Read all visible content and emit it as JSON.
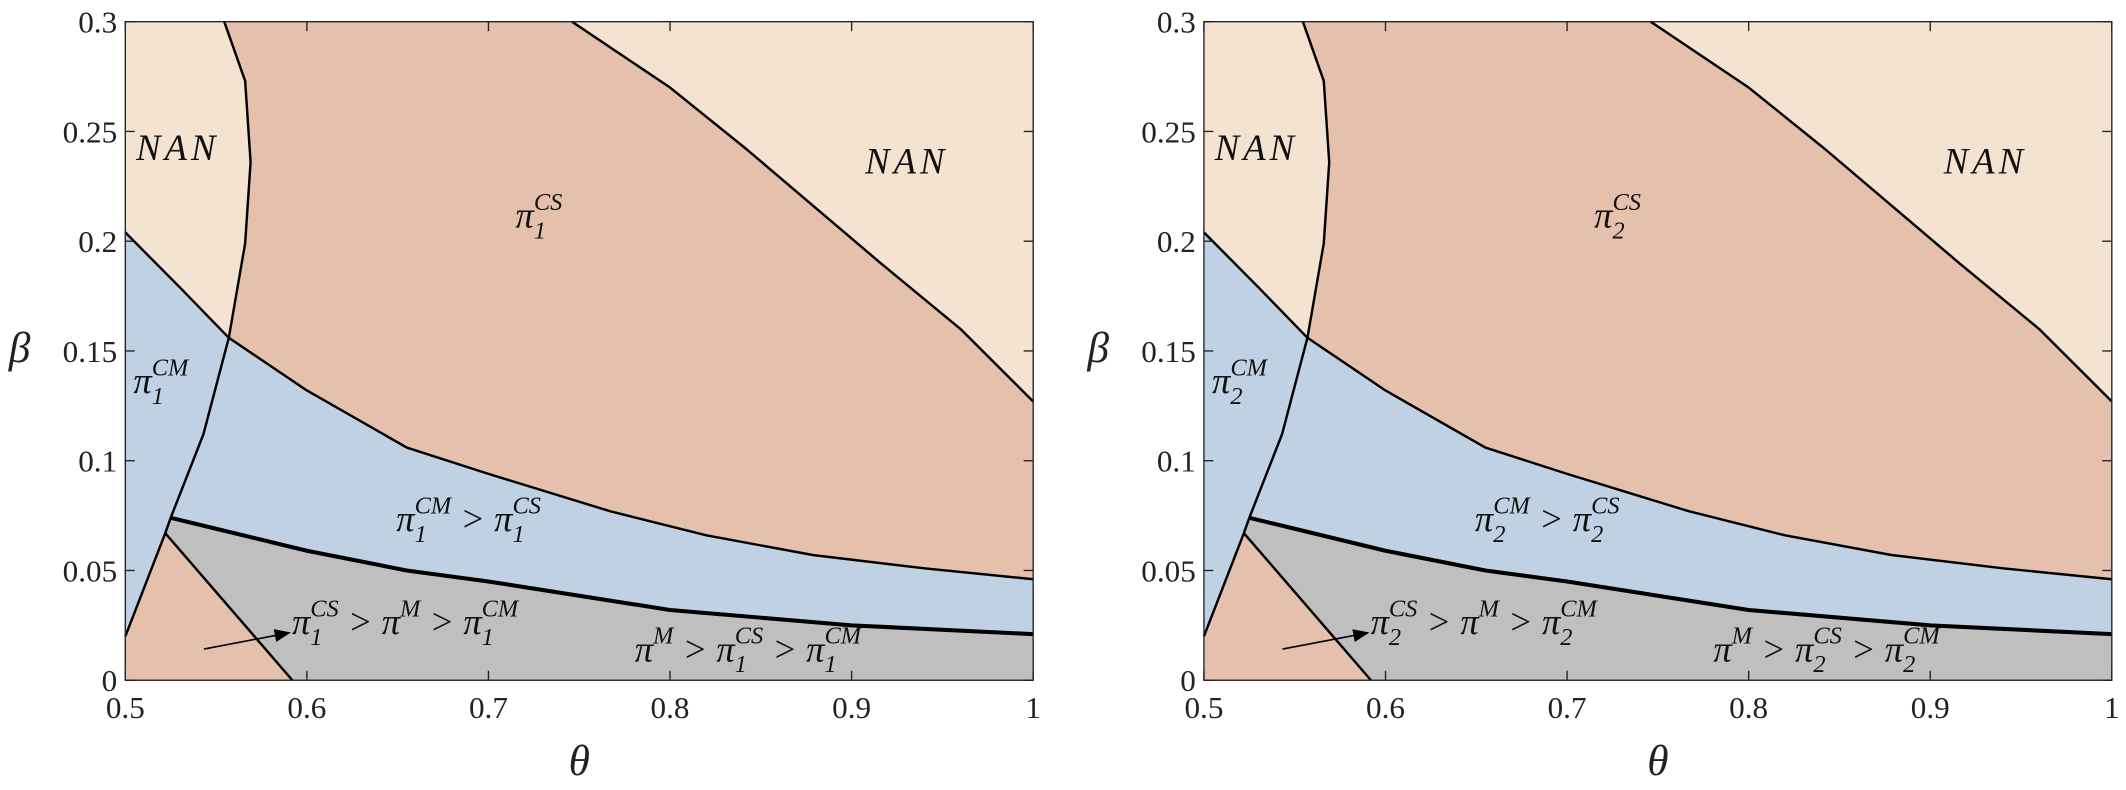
{
  "chart_data": [
    {
      "type": "region",
      "xlabel": "θ",
      "ylabel": "β",
      "xlim": [
        0.5,
        1
      ],
      "ylim": [
        0,
        0.3
      ],
      "xticks": [
        0.5,
        0.6,
        0.7,
        0.8,
        0.9,
        1
      ],
      "yticks": [
        0,
        0.05,
        0.1,
        0.15,
        0.2,
        0.25,
        0.3
      ],
      "region_colors": {
        "nan": "#f5e3d1",
        "cs": "#e4c0ad",
        "cm": "#c0d1e3",
        "m": "#bfbfbf"
      },
      "boundaries": [
        {
          "x": [
            0.5545,
            0.566,
            0.569,
            0.566,
            0.557,
            0.543,
            0.525,
            0.522,
            0.5
          ],
          "y": [
            0.3,
            0.273,
            0.236,
            0.199,
            0.156,
            0.112,
            0.074,
            0.067,
            0.02
          ]
        },
        {
          "x": [
            0.746,
            0.8,
            0.842,
            0.916,
            0.96,
            1
          ],
          "y": [
            0.3,
            0.27,
            0.242,
            0.19,
            0.16,
            0.127
          ]
        },
        {
          "x": [
            0.5,
            0.53,
            0.557,
            0.6,
            0.655,
            0.7,
            0.767,
            0.82,
            0.879,
            0.94,
            1
          ],
          "y": [
            0.204,
            0.179,
            0.156,
            0.132,
            0.106,
            0.094,
            0.077,
            0.066,
            0.057,
            0.051,
            0.046
          ]
        },
        {
          "x": [
            0.525,
            0.55,
            0.6,
            0.655,
            0.7,
            0.8,
            0.9,
            1
          ],
          "y": [
            0.074,
            0.069,
            0.059,
            0.05,
            0.045,
            0.032,
            0.025,
            0.021
          ]
        },
        {
          "x": [
            0.522,
            0.592
          ],
          "y": [
            0.067,
            0
          ]
        }
      ],
      "annotations": [
        [
          {
            "t": "NAN"
          }
        ],
        [
          {
            "t": "NAN"
          }
        ],
        [
          {
            "t": "π"
          },
          {
            "sub": "1"
          },
          {
            "sup": "CS"
          }
        ],
        [
          {
            "t": "π"
          },
          {
            "sub": "1"
          },
          {
            "sup": "CM"
          }
        ],
        [
          {
            "t": "π"
          },
          {
            "sub": "1"
          },
          {
            "sup": "CM"
          },
          {
            "t": " > π"
          },
          {
            "sub": "1"
          },
          {
            "sup": "CS"
          }
        ],
        [
          {
            "t": "π"
          },
          {
            "sub": "1"
          },
          {
            "sup": "CS"
          },
          {
            "t": " > π"
          },
          {
            "sup": "M"
          },
          {
            "t": " > π"
          },
          {
            "sub": "1"
          },
          {
            "sup": "CM"
          }
        ],
        [
          {
            "t": "π"
          },
          {
            "sup": "M"
          },
          {
            "t": " > π"
          },
          {
            "sub": "1"
          },
          {
            "sup": "CS"
          },
          {
            "t": " > π"
          },
          {
            "sub": "1"
          },
          {
            "sup": "CM"
          }
        ]
      ]
    },
    {
      "type": "region",
      "xlabel": "θ",
      "ylabel": "β",
      "xlim": [
        0.5,
        1
      ],
      "ylim": [
        0,
        0.3
      ],
      "xticks": [
        0.5,
        0.6,
        0.7,
        0.8,
        0.9,
        1
      ],
      "yticks": [
        0,
        0.05,
        0.1,
        0.15,
        0.2,
        0.25,
        0.3
      ],
      "region_colors": {
        "nan": "#f5e3d1",
        "cs": "#e4c0ad",
        "cm": "#c0d1e3",
        "m": "#bfbfbf"
      },
      "boundaries": [
        {
          "x": [
            0.5545,
            0.566,
            0.569,
            0.566,
            0.557,
            0.543,
            0.525,
            0.522,
            0.5
          ],
          "y": [
            0.3,
            0.273,
            0.236,
            0.199,
            0.156,
            0.112,
            0.074,
            0.067,
            0.02
          ]
        },
        {
          "x": [
            0.746,
            0.8,
            0.842,
            0.916,
            0.96,
            1
          ],
          "y": [
            0.3,
            0.27,
            0.242,
            0.19,
            0.16,
            0.127
          ]
        },
        {
          "x": [
            0.5,
            0.53,
            0.557,
            0.6,
            0.655,
            0.7,
            0.767,
            0.82,
            0.879,
            0.94,
            1
          ],
          "y": [
            0.204,
            0.179,
            0.156,
            0.132,
            0.106,
            0.094,
            0.077,
            0.066,
            0.057,
            0.051,
            0.046
          ]
        },
        {
          "x": [
            0.525,
            0.55,
            0.6,
            0.655,
            0.7,
            0.8,
            0.9,
            1
          ],
          "y": [
            0.074,
            0.069,
            0.059,
            0.05,
            0.045,
            0.032,
            0.025,
            0.021
          ]
        },
        {
          "x": [
            0.522,
            0.592
          ],
          "y": [
            0.067,
            0
          ]
        }
      ],
      "annotations": [
        [
          {
            "t": "NAN"
          }
        ],
        [
          {
            "t": "NAN"
          }
        ],
        [
          {
            "t": "π"
          },
          {
            "sub": "2"
          },
          {
            "sup": "CS"
          }
        ],
        [
          {
            "t": "π"
          },
          {
            "sub": "2"
          },
          {
            "sup": "CM"
          }
        ],
        [
          {
            "t": "π"
          },
          {
            "sub": "2"
          },
          {
            "sup": "CM"
          },
          {
            "t": " > π"
          },
          {
            "sub": "2"
          },
          {
            "sup": "CS"
          }
        ],
        [
          {
            "t": "π"
          },
          {
            "sub": "2"
          },
          {
            "sup": "CS"
          },
          {
            "t": " > π"
          },
          {
            "sup": "M"
          },
          {
            "t": " > π"
          },
          {
            "sub": "2"
          },
          {
            "sup": "CM"
          }
        ],
        [
          {
            "t": "π"
          },
          {
            "sup": "M"
          },
          {
            "t": " > π"
          },
          {
            "sub": "2"
          },
          {
            "sup": "CS"
          },
          {
            "t": " > π"
          },
          {
            "sub": "2"
          },
          {
            "sup": "CM"
          }
        ]
      ]
    }
  ]
}
